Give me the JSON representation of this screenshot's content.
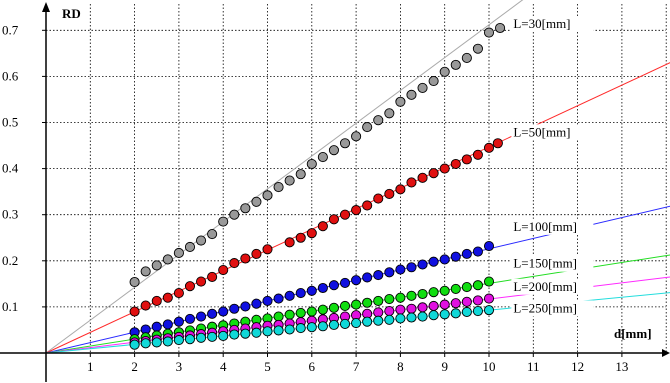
{
  "chart_data": {
    "type": "scatter",
    "xlabel": "d[mm]",
    "ylabel": "RD",
    "xlim": [
      -0.2,
      14.3
    ],
    "ylim": [
      -0.02,
      0.76
    ],
    "grid": true,
    "x_ticks": [
      "1",
      "2",
      "3",
      "4",
      "5",
      "6",
      "7",
      "8",
      "9",
      "10",
      "11",
      "12",
      "13"
    ],
    "y_ticks": [
      "0.1",
      "0.2",
      "0.3",
      "0.4",
      "0.5",
      "0.6",
      "0.7"
    ],
    "series": [
      {
        "name": "L=30[mm]",
        "color": "#999999",
        "line_color": "#aaaaaa",
        "slope": 0.0712,
        "fit_x_end": 11.4,
        "label_x": 10.55,
        "label_y": 0.705,
        "points": [
          [
            2,
            0.154
          ],
          [
            2.25,
            0.177
          ],
          [
            2.5,
            0.19
          ],
          [
            2.75,
            0.203
          ],
          [
            3,
            0.217
          ],
          [
            3.25,
            0.23
          ],
          [
            3.5,
            0.244
          ],
          [
            3.75,
            0.258
          ],
          [
            4,
            0.285
          ],
          [
            4.25,
            0.3
          ],
          [
            4.5,
            0.314
          ],
          [
            4.75,
            0.328
          ],
          [
            5,
            0.342
          ],
          [
            5.25,
            0.36
          ],
          [
            5.5,
            0.374
          ],
          [
            5.75,
            0.388
          ],
          [
            6,
            0.41
          ],
          [
            6.25,
            0.425
          ],
          [
            6.5,
            0.44
          ],
          [
            6.75,
            0.455
          ],
          [
            7,
            0.47
          ],
          [
            7.25,
            0.49
          ],
          [
            7.5,
            0.505
          ],
          [
            7.75,
            0.52
          ],
          [
            8,
            0.545
          ],
          [
            8.25,
            0.56
          ],
          [
            8.5,
            0.575
          ],
          [
            8.75,
            0.59
          ],
          [
            9,
            0.61
          ],
          [
            9.25,
            0.625
          ],
          [
            9.5,
            0.64
          ],
          [
            9.75,
            0.66
          ],
          [
            10,
            0.695
          ],
          [
            10.25,
            0.705
          ]
        ]
      },
      {
        "name": "L=50[mm]",
        "color": "#e01010",
        "line_color": "#ff2a2a",
        "slope": 0.0447,
        "fit_x_end": 14.3,
        "label_x": 10.55,
        "label_y": 0.47,
        "points": [
          [
            2,
            0.09
          ],
          [
            2.25,
            0.103
          ],
          [
            2.5,
            0.113
          ],
          [
            2.75,
            0.12
          ],
          [
            3,
            0.13
          ],
          [
            3.25,
            0.145
          ],
          [
            3.5,
            0.155
          ],
          [
            3.75,
            0.165
          ],
          [
            4,
            0.18
          ],
          [
            4.25,
            0.195
          ],
          [
            4.5,
            0.205
          ],
          [
            4.75,
            0.215
          ],
          [
            5,
            0.225
          ],
          [
            5.5,
            0.24
          ],
          [
            5.75,
            0.25
          ],
          [
            6,
            0.26
          ],
          [
            6.25,
            0.275
          ],
          [
            6.5,
            0.29
          ],
          [
            6.75,
            0.3
          ],
          [
            7,
            0.31
          ],
          [
            7.25,
            0.32
          ],
          [
            7.5,
            0.335
          ],
          [
            7.75,
            0.345
          ],
          [
            8,
            0.355
          ],
          [
            8.25,
            0.37
          ],
          [
            8.5,
            0.38
          ],
          [
            8.75,
            0.39
          ],
          [
            9,
            0.4
          ],
          [
            9.25,
            0.41
          ],
          [
            9.5,
            0.42
          ],
          [
            9.75,
            0.43
          ],
          [
            10,
            0.445
          ],
          [
            10.2,
            0.455
          ]
        ]
      },
      {
        "name": "L=100[mm]",
        "color": "#1010e0",
        "line_color": "#2a2aff",
        "slope": 0.0226,
        "fit_x_end": 14.3,
        "label_x": 10.55,
        "label_y": 0.265,
        "points": [
          [
            2,
            0.045
          ],
          [
            2.25,
            0.051
          ],
          [
            2.5,
            0.057
          ],
          [
            2.75,
            0.062
          ],
          [
            3,
            0.068
          ],
          [
            3.25,
            0.074
          ],
          [
            3.5,
            0.079
          ],
          [
            3.75,
            0.085
          ],
          [
            4,
            0.09
          ],
          [
            4.25,
            0.096
          ],
          [
            4.5,
            0.101
          ],
          [
            4.75,
            0.107
          ],
          [
            5,
            0.113
          ],
          [
            5.25,
            0.118
          ],
          [
            5.5,
            0.124
          ],
          [
            5.75,
            0.13
          ],
          [
            6,
            0.135
          ],
          [
            6.25,
            0.141
          ],
          [
            6.5,
            0.147
          ],
          [
            6.75,
            0.152
          ],
          [
            7,
            0.158
          ],
          [
            7.25,
            0.164
          ],
          [
            7.5,
            0.169
          ],
          [
            7.75,
            0.175
          ],
          [
            8,
            0.181
          ],
          [
            8.25,
            0.186
          ],
          [
            8.5,
            0.192
          ],
          [
            8.75,
            0.198
          ],
          [
            9,
            0.203
          ],
          [
            9.25,
            0.209
          ],
          [
            9.5,
            0.215
          ],
          [
            9.75,
            0.22
          ],
          [
            10,
            0.232
          ]
        ]
      },
      {
        "name": "L=150[mm]",
        "color": "#10dd10",
        "line_color": "#22dd22",
        "slope": 0.0151,
        "fit_x_end": 14.3,
        "label_x": 10.55,
        "label_y": 0.185,
        "points": [
          [
            2,
            0.03
          ],
          [
            2.25,
            0.034
          ],
          [
            2.5,
            0.038
          ],
          [
            2.75,
            0.042
          ],
          [
            3,
            0.045
          ],
          [
            3.25,
            0.049
          ],
          [
            3.5,
            0.053
          ],
          [
            3.75,
            0.057
          ],
          [
            4,
            0.06
          ],
          [
            4.25,
            0.064
          ],
          [
            4.5,
            0.068
          ],
          [
            4.75,
            0.072
          ],
          [
            5,
            0.075
          ],
          [
            5.25,
            0.079
          ],
          [
            5.5,
            0.083
          ],
          [
            5.75,
            0.087
          ],
          [
            6,
            0.09
          ],
          [
            6.25,
            0.094
          ],
          [
            6.5,
            0.098
          ],
          [
            6.75,
            0.102
          ],
          [
            7,
            0.105
          ],
          [
            7.25,
            0.109
          ],
          [
            7.5,
            0.113
          ],
          [
            7.75,
            0.117
          ],
          [
            8,
            0.12
          ],
          [
            8.25,
            0.124
          ],
          [
            8.5,
            0.128
          ],
          [
            8.75,
            0.132
          ],
          [
            9,
            0.135
          ],
          [
            9.25,
            0.139
          ],
          [
            9.5,
            0.143
          ],
          [
            9.75,
            0.147
          ],
          [
            10,
            0.155
          ]
        ]
      },
      {
        "name": "L=200[mm]",
        "color": "#e010e0",
        "line_color": "#ff2aff",
        "slope": 0.0117,
        "fit_x_end": 14.3,
        "label_x": 10.55,
        "label_y": 0.135,
        "points": [
          [
            2,
            0.023
          ],
          [
            2.25,
            0.026
          ],
          [
            2.5,
            0.029
          ],
          [
            2.75,
            0.032
          ],
          [
            3,
            0.035
          ],
          [
            3.25,
            0.038
          ],
          [
            3.5,
            0.041
          ],
          [
            3.75,
            0.044
          ],
          [
            4,
            0.047
          ],
          [
            4.25,
            0.05
          ],
          [
            4.5,
            0.053
          ],
          [
            4.75,
            0.056
          ],
          [
            5,
            0.059
          ],
          [
            5.25,
            0.061
          ],
          [
            5.5,
            0.064
          ],
          [
            5.75,
            0.067
          ],
          [
            6,
            0.07
          ],
          [
            6.25,
            0.073
          ],
          [
            6.5,
            0.076
          ],
          [
            6.75,
            0.079
          ],
          [
            7,
            0.082
          ],
          [
            7.25,
            0.085
          ],
          [
            7.5,
            0.088
          ],
          [
            7.75,
            0.091
          ],
          [
            8,
            0.094
          ],
          [
            8.25,
            0.096
          ],
          [
            8.5,
            0.099
          ],
          [
            8.75,
            0.102
          ],
          [
            9,
            0.105
          ],
          [
            9.25,
            0.108
          ],
          [
            9.5,
            0.111
          ],
          [
            9.75,
            0.114
          ],
          [
            10,
            0.118
          ]
        ]
      },
      {
        "name": "L=250[mm]",
        "color": "#10d8d8",
        "line_color": "#22dddd",
        "slope": 0.0093,
        "fit_x_end": 14.3,
        "label_x": 10.55,
        "label_y": 0.088,
        "points": [
          [
            2,
            0.018
          ],
          [
            2.25,
            0.021
          ],
          [
            2.5,
            0.023
          ],
          [
            2.75,
            0.025
          ],
          [
            3,
            0.028
          ],
          [
            3.25,
            0.03
          ],
          [
            3.5,
            0.033
          ],
          [
            3.75,
            0.035
          ],
          [
            4,
            0.037
          ],
          [
            4.25,
            0.04
          ],
          [
            4.5,
            0.042
          ],
          [
            4.75,
            0.044
          ],
          [
            5,
            0.047
          ],
          [
            5.25,
            0.049
          ],
          [
            5.5,
            0.051
          ],
          [
            5.75,
            0.054
          ],
          [
            6,
            0.056
          ],
          [
            6.25,
            0.058
          ],
          [
            6.5,
            0.061
          ],
          [
            6.75,
            0.063
          ],
          [
            7,
            0.065
          ],
          [
            7.25,
            0.068
          ],
          [
            7.5,
            0.07
          ],
          [
            7.75,
            0.072
          ],
          [
            8,
            0.075
          ],
          [
            8.25,
            0.077
          ],
          [
            8.5,
            0.079
          ],
          [
            8.75,
            0.082
          ],
          [
            9,
            0.084
          ],
          [
            9.25,
            0.086
          ],
          [
            9.5,
            0.089
          ],
          [
            9.75,
            0.091
          ],
          [
            10,
            0.093
          ]
        ]
      }
    ]
  }
}
